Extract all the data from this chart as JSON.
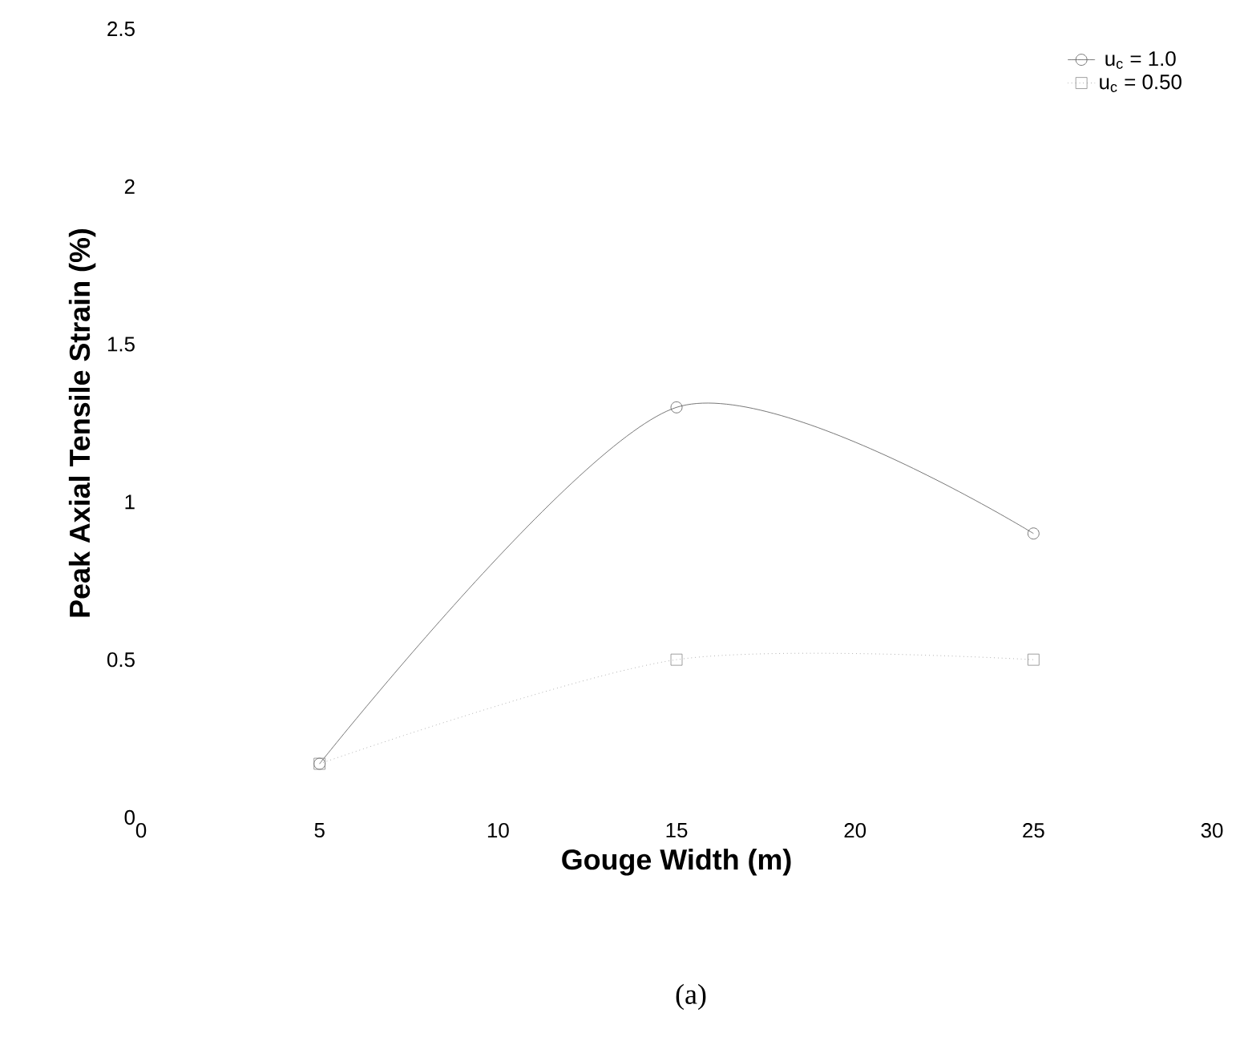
{
  "chart_data": {
    "type": "line",
    "xlabel": "Gouge Width (m)",
    "ylabel": "Peak Axial Tensile Strain (%)",
    "annotations": [
      "(a)"
    ],
    "x": [
      5,
      15,
      25
    ],
    "series": [
      {
        "name": "u$_{c}$ = 1.0",
        "color": "#555555",
        "values": [
          0.17,
          1.3,
          0.9
        ],
        "marker": "circle",
        "line_style": "solid"
      },
      {
        "name": "u$_{c}$ = 0.50",
        "color": "#888888",
        "values": [
          0.17,
          0.5,
          0.5
        ],
        "marker": "square",
        "line_style": "dotted"
      }
    ],
    "xlim": [
      0,
      30
    ],
    "ylim": [
      0,
      2.5
    ],
    "xticks": [
      0,
      5,
      10,
      15,
      20,
      25,
      30
    ],
    "yticks": [
      0,
      0.5,
      1,
      1.5,
      2,
      2.5
    ],
    "grid": false,
    "legend": "top right"
  }
}
